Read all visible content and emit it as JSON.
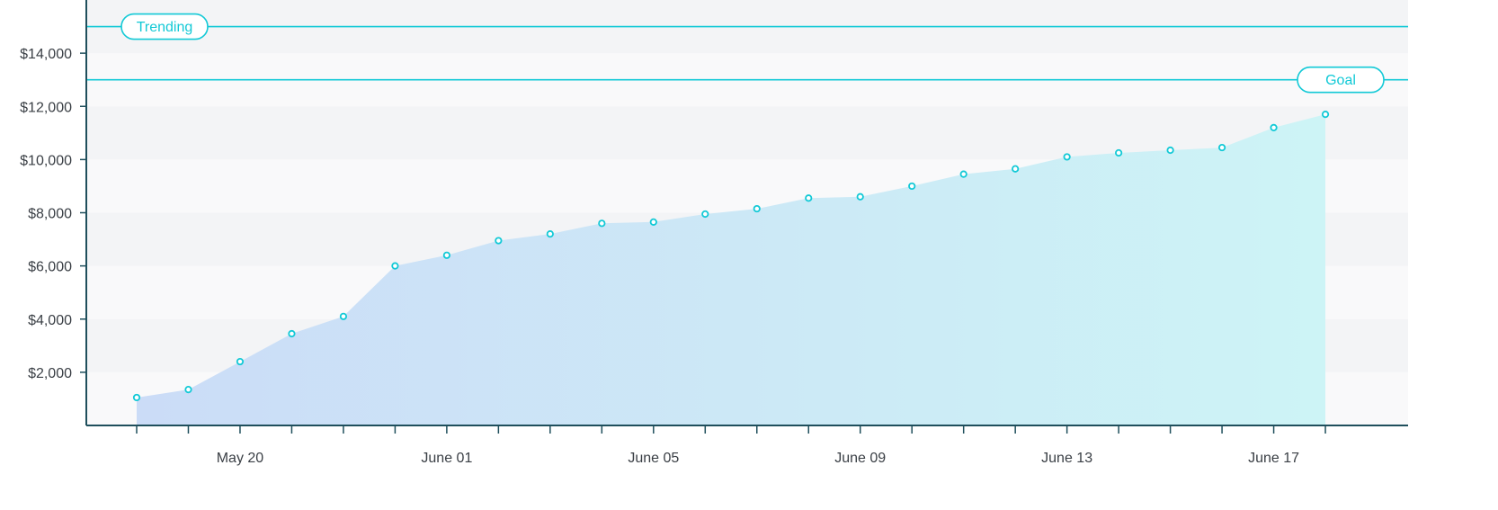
{
  "chart_data": {
    "type": "area",
    "title": "",
    "xlabel": "",
    "ylabel": "",
    "ylim": [
      0,
      16000
    ],
    "y_ticks": [
      2000,
      4000,
      6000,
      8000,
      10000,
      12000,
      14000
    ],
    "y_tick_labels": [
      "$2,000",
      "$4,000",
      "$6,000",
      "$8,000",
      "$10,000",
      "$12,000",
      "$14,000"
    ],
    "x_labels": [
      "May 20",
      "June 01",
      "June 05",
      "June 09",
      "June 13",
      "June 17"
    ],
    "grid": "alternating horizontal bands",
    "series": [
      {
        "values": [
          1050,
          1350,
          2400,
          3450,
          4100,
          6000,
          6400,
          6950,
          7200,
          7600,
          7650,
          7950,
          8150,
          8550,
          8600,
          9000,
          9450,
          9650,
          10100,
          10250,
          10350,
          10450,
          11200,
          11700
        ]
      }
    ],
    "reference_lines": [
      {
        "label": "Trending",
        "value": 15000,
        "label_position": "left"
      },
      {
        "label": "Goal",
        "value": 13000,
        "label_position": "right"
      }
    ],
    "colors": {
      "accent": "#12c9d6",
      "axis": "#1f4f5c",
      "area_start": "#cbdcf7",
      "area_end": "#cdf4f6",
      "band_dark": "#f3f4f6",
      "band_light": "#f9f9fa"
    }
  }
}
